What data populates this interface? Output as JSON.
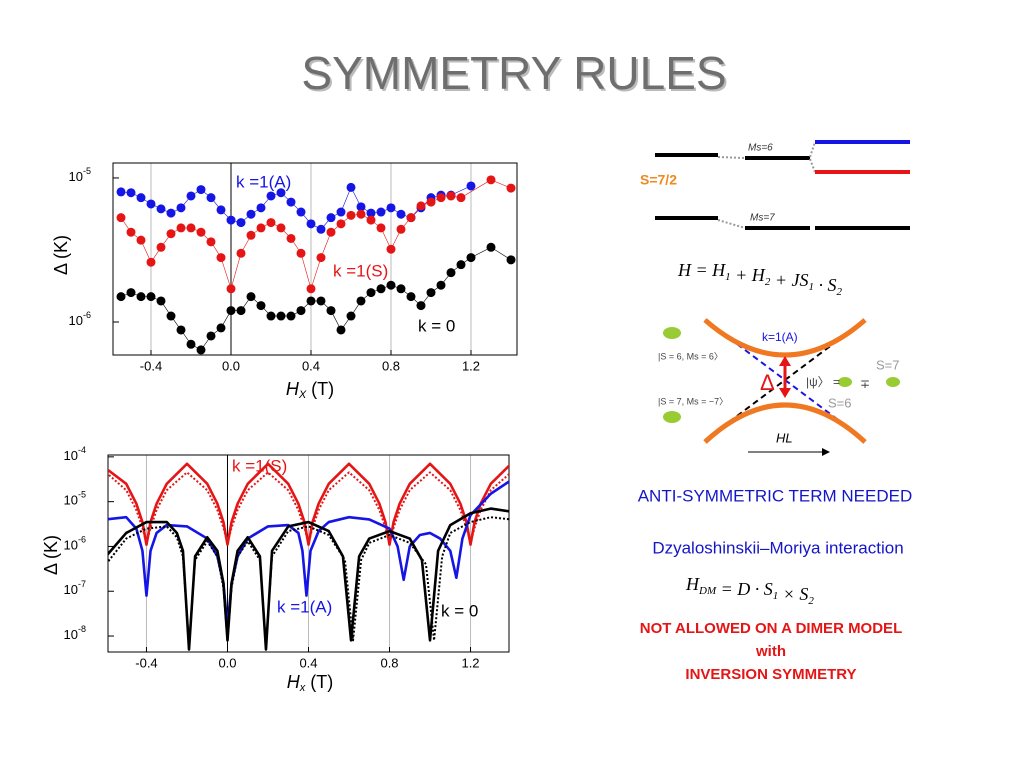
{
  "title": "SYMMETRY RULES",
  "chart_data": [
    {
      "type": "scatter",
      "log_y": true,
      "grid": true,
      "y_label": "Δ (K)",
      "x_label": {
        "symbol": "H",
        "sub": "X",
        "unit": " (T)"
      },
      "xlim": [
        -0.59,
        1.43
      ],
      "ylim": [
        5.9e-07,
        1.27e-05
      ],
      "xticks": [
        -0.4,
        {
          "value": 0,
          "label": "0.0"
        },
        0.4,
        0.8,
        1.2
      ],
      "yticks": [
        {
          "value": 1e-06,
          "label": "10",
          "power": "-6"
        },
        {
          "value": 1e-05,
          "label": "10",
          "power": "-5"
        }
      ],
      "series": [
        {
          "name": "k =1(A)",
          "color": "#1515e6",
          "x": [
            -0.55,
            -0.5,
            -0.45,
            -0.4,
            -0.35,
            -0.3,
            -0.25,
            -0.2,
            -0.15,
            -0.1,
            -0.05,
            0,
            0.05,
            0.1,
            0.15,
            0.2,
            0.25,
            0.3,
            0.35,
            0.4,
            0.45,
            0.5,
            0.55,
            0.6,
            0.65,
            0.7,
            0.75,
            0.8,
            0.85,
            0.9,
            0.95,
            1.0,
            1.05,
            1.1,
            1.2
          ],
          "values": [
            8e-06,
            7.9e-06,
            7.3e-06,
            6.6e-06,
            6.1e-06,
            5.7e-06,
            6.2e-06,
            7.5e-06,
            8.3e-06,
            7.3e-06,
            6e-06,
            5.1e-06,
            4.9e-06,
            5.6e-06,
            6.2e-06,
            7.5e-06,
            7.9e-06,
            6.8e-06,
            5.8e-06,
            4.8e-06,
            4.4e-06,
            5.3e-06,
            5.8e-06,
            8.6e-06,
            6.3e-06,
            5.7e-06,
            5.8e-06,
            6.2e-06,
            5.6e-06,
            5.3e-06,
            6.2e-06,
            7.3e-06,
            7.6e-06,
            7.6e-06,
            8.8e-06
          ]
        },
        {
          "name": "k =1(S)",
          "color": "#e61515",
          "x": [
            -0.55,
            -0.5,
            -0.45,
            -0.4,
            -0.35,
            -0.3,
            -0.25,
            -0.2,
            -0.15,
            -0.1,
            -0.05,
            0,
            0.05,
            0.1,
            0.15,
            0.2,
            0.25,
            0.3,
            0.35,
            0.4,
            0.45,
            0.5,
            0.55,
            0.6,
            0.65,
            0.7,
            0.75,
            0.8,
            0.85,
            0.9,
            0.95,
            1.0,
            1.05,
            1.1,
            1.15,
            1.3,
            1.4
          ],
          "values": [
            5.3e-06,
            4.2e-06,
            3.7e-06,
            2.6e-06,
            3.3e-06,
            4.1e-06,
            4.5e-06,
            4.5e-06,
            4.2e-06,
            3.6e-06,
            2.8e-06,
            1.7e-06,
            3e-06,
            4e-06,
            4.5e-06,
            4.9e-06,
            4.5e-06,
            3.8e-06,
            3e-06,
            1.7e-06,
            2.8e-06,
            4.2e-06,
            4.8e-06,
            5.5e-06,
            5.6e-06,
            5.1e-06,
            4.5e-06,
            3.2e-06,
            4.4e-06,
            5.3e-06,
            6.4e-06,
            6.8e-06,
            7.3e-06,
            7.5e-06,
            7.3e-06,
            9.7e-06,
            8.5e-06
          ]
        },
        {
          "name": "k = 0",
          "color": "#000000",
          "x": [
            -0.55,
            -0.5,
            -0.45,
            -0.4,
            -0.35,
            -0.3,
            -0.25,
            -0.2,
            -0.15,
            -0.1,
            -0.05,
            0,
            0.05,
            0.1,
            0.15,
            0.2,
            0.25,
            0.3,
            0.35,
            0.4,
            0.45,
            0.5,
            0.55,
            0.6,
            0.65,
            0.7,
            0.75,
            0.8,
            0.85,
            0.9,
            0.95,
            1.0,
            1.05,
            1.1,
            1.15,
            1.2,
            1.3,
            1.4
          ],
          "values": [
            1.5e-06,
            1.6e-06,
            1.5e-06,
            1.5e-06,
            1.4e-06,
            1.1e-06,
            8.8e-07,
            7e-07,
            6.4e-07,
            8e-07,
            9.1e-07,
            1.2e-06,
            1.2e-06,
            1.5e-06,
            1.3e-06,
            1.1e-06,
            1.1e-06,
            1.1e-06,
            1.2e-06,
            1.4e-06,
            1.4e-06,
            1.2e-06,
            8.8e-07,
            1.1e-06,
            1.4e-06,
            1.6e-06,
            1.7e-06,
            1.8e-06,
            1.7e-06,
            1.5e-06,
            1.3e-06,
            1.6e-06,
            1.8e-06,
            2.2e-06,
            2.5e-06,
            2.8e-06,
            3.3e-06,
            2.7e-06
          ]
        }
      ]
    },
    {
      "type": "line",
      "log_y": true,
      "grid": true,
      "y_label": "Δ (K)",
      "x_label": {
        "symbol": "H",
        "sub": "x",
        "unit": " (T)"
      },
      "xlim": [
        -0.59,
        1.39
      ],
      "ylim": [
        4.4e-09,
        0.00011
      ],
      "xticks": [
        -0.4,
        {
          "value": 0,
          "label": "0.0"
        },
        0.4,
        0.8,
        1.2
      ],
      "yticks": [
        {
          "value": 1e-08,
          "label": "10",
          "power": "-8"
        },
        {
          "value": 1e-07,
          "label": "10",
          "power": "-7"
        },
        {
          "value": 1e-06,
          "label": "10",
          "power": "-6"
        },
        {
          "value": 1e-05,
          "label": "10",
          "power": "-5"
        },
        {
          "value": 0.0001,
          "label": "10",
          "power": "-4"
        }
      ],
      "series": [
        {
          "name": "k =1(S)",
          "color": "#e61515",
          "dash": false,
          "x": [
            -0.6,
            -0.5,
            -0.45,
            -0.42,
            -0.4,
            -0.38,
            -0.35,
            -0.3,
            -0.2,
            -0.1,
            -0.05,
            -0.02,
            0,
            0.02,
            0.05,
            0.1,
            0.2,
            0.3,
            0.35,
            0.38,
            0.4,
            0.42,
            0.45,
            0.5,
            0.6,
            0.7,
            0.75,
            0.78,
            0.8,
            0.82,
            0.85,
            0.9,
            1.0,
            1.1,
            1.15,
            1.18,
            1.2,
            1.22,
            1.25,
            1.3,
            1.4
          ],
          "values": [
            5.5e-05,
            2.5e-05,
            9e-06,
            3.5e-06,
            1.1e-06,
            3.5e-06,
            9e-06,
            2.5e-05,
            7e-05,
            2.5e-05,
            9e-06,
            3.5e-06,
            1.1e-06,
            3.5e-06,
            9e-06,
            2.5e-05,
            7e-05,
            2.5e-05,
            9e-06,
            3.5e-06,
            1.1e-06,
            3.5e-06,
            9e-06,
            2.5e-05,
            7e-05,
            2.5e-05,
            9e-06,
            3.5e-06,
            1.1e-06,
            3.5e-06,
            9e-06,
            2.5e-05,
            7e-05,
            2.5e-05,
            9e-06,
            3.5e-06,
            1.1e-06,
            3.5e-06,
            9e-06,
            2.5e-05,
            7e-05
          ]
        },
        {
          "color": "#e61515",
          "dash": true,
          "x": [
            -0.6,
            -0.5,
            -0.45,
            -0.42,
            -0.4,
            -0.38,
            -0.35,
            -0.3,
            -0.2,
            -0.1,
            -0.05,
            -0.02,
            0,
            0.02,
            0.05,
            0.1,
            0.2,
            0.3,
            0.35,
            0.38,
            0.4,
            0.42,
            0.45,
            0.5,
            0.6,
            0.7,
            0.75,
            0.78,
            0.8,
            0.82,
            0.85,
            0.9,
            1.0,
            1.1,
            1.15,
            1.18,
            1.2,
            1.22,
            1.25,
            1.3,
            1.4
          ],
          "values": [
            4.5e-05,
            1.8e-05,
            6.5e-06,
            2.6e-06,
            1.2e-06,
            2.6e-06,
            6.5e-06,
            1.8e-05,
            4.5e-05,
            1.8e-05,
            6.5e-06,
            2.6e-06,
            1.2e-06,
            2.6e-06,
            6.5e-06,
            1.8e-05,
            4.5e-05,
            1.8e-05,
            6.5e-06,
            2.6e-06,
            1.2e-06,
            2.6e-06,
            6.5e-06,
            1.8e-05,
            4.5e-05,
            1.8e-05,
            6.5e-06,
            2.6e-06,
            1.2e-06,
            2.6e-06,
            6.5e-06,
            1.8e-05,
            4.5e-05,
            1.8e-05,
            6.5e-06,
            2.6e-06,
            1.2e-06,
            2.6e-06,
            6.5e-06,
            1.8e-05,
            4.5e-05
          ]
        },
        {
          "name": "k =1(A)",
          "color": "#1515e6",
          "dash": false,
          "x": [
            -0.6,
            -0.5,
            -0.45,
            -0.42,
            -0.4,
            -0.38,
            -0.35,
            -0.3,
            -0.2,
            -0.1,
            -0.05,
            -0.02,
            0,
            0.02,
            0.05,
            0.1,
            0.2,
            0.3,
            0.35,
            0.37,
            0.39,
            0.41,
            0.45,
            0.5,
            0.6,
            0.7,
            0.8,
            0.84,
            0.87,
            0.9,
            0.95,
            1.0,
            1.05,
            1.1,
            1.13,
            1.16,
            1.2,
            1.3,
            1.4
          ],
          "values": [
            4e-06,
            4.5e-06,
            2.5e-06,
            8e-07,
            8e-08,
            8e-07,
            2e-06,
            3e-06,
            2.8e-06,
            1.5e-06,
            6e-07,
            1.5e-07,
            1.5e-08,
            1.5e-07,
            6e-07,
            1.5e-06,
            2.8e-06,
            3e-06,
            2e-06,
            8e-07,
            8e-08,
            8e-07,
            2.2e-06,
            3.5e-06,
            4.5e-06,
            4e-06,
            2.5e-06,
            1e-06,
            1.8e-07,
            1e-06,
            1.8e-06,
            2e-06,
            1.5e-06,
            8e-07,
            2e-07,
            1.5e-06,
            5e-06,
            1.5e-05,
            3e-05
          ]
        },
        {
          "name": "k = 0",
          "color": "#000000",
          "dash": false,
          "x": [
            -0.6,
            -0.5,
            -0.4,
            -0.3,
            -0.25,
            -0.22,
            -0.19,
            -0.16,
            -0.1,
            -0.05,
            -0.02,
            0,
            0.02,
            0.05,
            0.1,
            0.16,
            0.19,
            0.22,
            0.3,
            0.4,
            0.5,
            0.57,
            0.61,
            0.65,
            0.7,
            0.8,
            0.9,
            0.96,
            1.0,
            1.04,
            1.1,
            1.2,
            1.3,
            1.4
          ],
          "values": [
            6e-07,
            2e-06,
            3.5e-06,
            3.5e-06,
            2e-06,
            8e-07,
            5e-09,
            6e-07,
            1.6e-06,
            8e-07,
            1.5e-07,
            8e-09,
            1.5e-07,
            8e-07,
            1.6e-06,
            6e-07,
            5e-09,
            8e-07,
            2.8e-06,
            3.5e-06,
            2.2e-06,
            6e-07,
            8e-09,
            6e-07,
            1.5e-06,
            2.2e-06,
            1.5e-06,
            5e-07,
            8e-09,
            8e-07,
            3e-06,
            5.5e-06,
            7e-06,
            6e-06
          ]
        },
        {
          "color": "#000000",
          "dash": true,
          "x": [
            -0.6,
            -0.5,
            -0.4,
            -0.3,
            -0.25,
            -0.22,
            -0.19,
            -0.16,
            -0.1,
            -0.05,
            -0.02,
            0,
            0.02,
            0.05,
            0.1,
            0.16,
            0.19,
            0.22,
            0.3,
            0.4,
            0.5,
            0.58,
            0.62,
            0.66,
            0.7,
            0.8,
            0.9,
            0.98,
            1.02,
            1.06,
            1.1,
            1.2,
            1.3,
            1.4
          ],
          "values": [
            4e-07,
            1.5e-06,
            2.5e-06,
            2.8e-06,
            1.6e-06,
            6e-07,
            6e-09,
            5e-07,
            1.3e-06,
            6e-07,
            1.2e-07,
            8e-09,
            1.2e-07,
            6e-07,
            1.3e-06,
            5e-07,
            6e-09,
            6e-07,
            2.2e-06,
            2.8e-06,
            1.8e-06,
            5e-07,
            8e-09,
            5e-07,
            1.2e-06,
            1.8e-06,
            1.2e-06,
            4e-07,
            8e-09,
            6e-07,
            2e-06,
            3.5e-06,
            4.5e-06,
            4e-06
          ]
        }
      ]
    }
  ],
  "level_diagram": {
    "spin": "S=7/2",
    "upper": "Ms=6",
    "lower": "Ms=7"
  },
  "hamiltonian": [
    {
      "text": "H = H",
      "sub": "1"
    },
    {
      "text": " + H",
      "sub": "2"
    },
    {
      "text": " + JS",
      "sub": "1"
    },
    {
      "text": " · S",
      "sub": "2"
    }
  ],
  "crossing": {
    "branch": "k=1(A)",
    "gap": "Δ",
    "state_upper": "|S = 6, Ms = 6〉",
    "state_lower": "|S = 7, Ms = −7〉",
    "psi": "|ψ〉 =",
    "sign": "∓",
    "s7": "S=7",
    "s6": "S=6",
    "field": "HL"
  },
  "statement": "ANTI-SYMMETRIC TERM NEEDED",
  "interaction": "Dzyaloshinskii–Moriya interaction",
  "dm_term": [
    {
      "text": "H",
      "sub": "DM"
    },
    {
      "text": " = D · S",
      "sub": "1"
    },
    {
      "text": " × S",
      "sub": "2"
    }
  ],
  "conclusion": [
    "NOT ALLOWED ON A DIMER MODEL",
    "with",
    "INVERSION SYMMETRY"
  ]
}
